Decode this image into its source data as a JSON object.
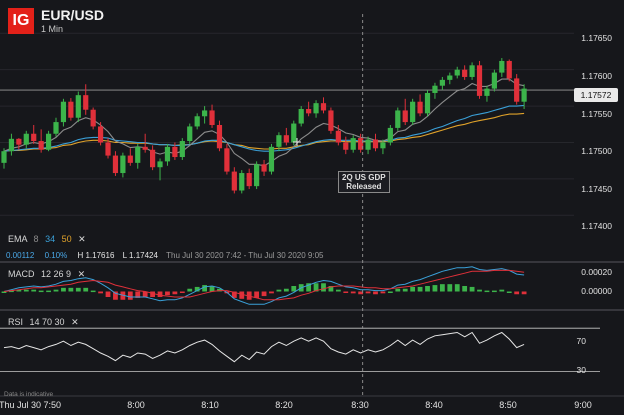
{
  "header": {
    "logo": "IG",
    "symbol": "EUR/USD",
    "timeframe": "1 Min"
  },
  "ema": {
    "label": "EMA",
    "p1": "8",
    "p2": "34",
    "p3": "50",
    "close": "✕",
    "colors": {
      "p1": "#8c8c8c",
      "p2": "#3aa0d8",
      "p3": "#e0a22a"
    }
  },
  "info": {
    "change": "0.00112",
    "change_pct": "0.10%",
    "high": "H 1.17616",
    "low": "L 1.17424",
    "range": "Thu Jul 30 2020 7:42 - Thu Jul 30 2020 9:05"
  },
  "macd": {
    "label": "MACD",
    "params": "12 26 9",
    "close": "✕",
    "ticks": [
      "0.00020",
      "0.00000"
    ]
  },
  "rsi": {
    "label": "RSI",
    "params": "14 70 30",
    "close": "✕",
    "ticks": [
      "70",
      "30"
    ]
  },
  "annotation": {
    "line1": "2Q US GDP",
    "line2": "Released"
  },
  "current_price": "1.17572",
  "disclaimer": "Data is indicative",
  "colors": {
    "up": "#3cb44b",
    "down": "#e0303a",
    "bg": "#16171b"
  },
  "chart_data": {
    "type": "candlestick",
    "title": "EUR/USD",
    "interval": "1 Min",
    "y_ticks": [
      "1.17650",
      "1.17600",
      "1.17550",
      "1.17500",
      "1.17450",
      "1.17400"
    ],
    "ylim": [
      1.17377,
      1.17682
    ],
    "x_ticks": [
      "Thu Jul 30  7:50",
      "8:00",
      "8:10",
      "8:20",
      "8:30",
      "8:40",
      "8:50",
      "9:00"
    ],
    "start": "07:42",
    "marker_time": "08:30",
    "current": 1.17572,
    "candles": [
      [
        1.17472,
        1.17492,
        1.17464,
        1.17488
      ],
      [
        1.17488,
        1.17512,
        1.17482,
        1.17505
      ],
      [
        1.17505,
        1.17506,
        1.1749,
        1.17497
      ],
      [
        1.17497,
        1.17516,
        1.17492,
        1.17512
      ],
      [
        1.17512,
        1.17524,
        1.17498,
        1.17502
      ],
      [
        1.17502,
        1.17518,
        1.17486,
        1.1749
      ],
      [
        1.1749,
        1.17516,
        1.17488,
        1.17512
      ],
      [
        1.17512,
        1.17534,
        1.17508,
        1.17528
      ],
      [
        1.17528,
        1.1756,
        1.17522,
        1.17556
      ],
      [
        1.17556,
        1.17561,
        1.1753,
        1.17534
      ],
      [
        1.17534,
        1.1757,
        1.17528,
        1.17565
      ],
      [
        1.17565,
        1.1758,
        1.17538,
        1.17545
      ],
      [
        1.17545,
        1.17548,
        1.17518,
        1.17522
      ],
      [
        1.17522,
        1.17528,
        1.17496,
        1.175
      ],
      [
        1.175,
        1.17506,
        1.17478,
        1.17482
      ],
      [
        1.17482,
        1.17488,
        1.17454,
        1.17458
      ],
      [
        1.17458,
        1.17486,
        1.17452,
        1.17482
      ],
      [
        1.17482,
        1.17492,
        1.17468,
        1.17472
      ],
      [
        1.17472,
        1.17498,
        1.17464,
        1.17494
      ],
      [
        1.17494,
        1.17512,
        1.17486,
        1.1749
      ],
      [
        1.1749,
        1.17496,
        1.17462,
        1.17466
      ],
      [
        1.17466,
        1.17478,
        1.17448,
        1.17474
      ],
      [
        1.17474,
        1.17498,
        1.17468,
        1.17494
      ],
      [
        1.17494,
        1.175,
        1.17476,
        1.1748
      ],
      [
        1.1748,
        1.17506,
        1.17476,
        1.17502
      ],
      [
        1.17502,
        1.17526,
        1.17498,
        1.17522
      ],
      [
        1.17522,
        1.1754,
        1.17518,
        1.17536
      ],
      [
        1.17536,
        1.1755,
        1.17526,
        1.17544
      ],
      [
        1.17544,
        1.17552,
        1.1752,
        1.17524
      ],
      [
        1.17524,
        1.1753,
        1.17488,
        1.17492
      ],
      [
        1.17492,
        1.17498,
        1.17456,
        1.1746
      ],
      [
        1.1746,
        1.17466,
        1.1743,
        1.17434
      ],
      [
        1.17434,
        1.17462,
        1.1743,
        1.17458
      ],
      [
        1.17458,
        1.17464,
        1.17436,
        1.1744
      ],
      [
        1.1744,
        1.17474,
        1.17436,
        1.1747
      ],
      [
        1.1747,
        1.17476,
        1.17454,
        1.1746
      ],
      [
        1.1746,
        1.17498,
        1.17456,
        1.17494
      ],
      [
        1.17494,
        1.17514,
        1.17488,
        1.1751
      ],
      [
        1.1751,
        1.1752,
        1.17496,
        1.175
      ],
      [
        1.175,
        1.1753,
        1.17496,
        1.17526
      ],
      [
        1.17526,
        1.1755,
        1.17522,
        1.17546
      ],
      [
        1.17546,
        1.17556,
        1.17536,
        1.1754
      ],
      [
        1.1754,
        1.17558,
        1.17534,
        1.17554
      ],
      [
        1.17554,
        1.17562,
        1.1754,
        1.17544
      ],
      [
        1.17544,
        1.17548,
        1.17512,
        1.17516
      ],
      [
        1.17516,
        1.17524,
        1.17496,
        1.175
      ],
      [
        1.175,
        1.17508,
        1.17484,
        1.1749
      ],
      [
        1.1749,
        1.1751,
        1.17486,
        1.17506
      ],
      [
        1.17506,
        1.17512,
        1.17486,
        1.1749
      ],
      [
        1.1749,
        1.17508,
        1.17484,
        1.17504
      ],
      [
        1.17504,
        1.17512,
        1.17488,
        1.17492
      ],
      [
        1.17492,
        1.17504,
        1.17484,
        1.175
      ],
      [
        1.175,
        1.17524,
        1.17496,
        1.1752
      ],
      [
        1.1752,
        1.17548,
        1.17516,
        1.17544
      ],
      [
        1.17544,
        1.1756,
        1.17524,
        1.17528
      ],
      [
        1.17528,
        1.1756,
        1.17524,
        1.17556
      ],
      [
        1.17556,
        1.17566,
        1.17536,
        1.1754
      ],
      [
        1.1754,
        1.17572,
        1.17536,
        1.17568
      ],
      [
        1.17568,
        1.17582,
        1.1756,
        1.17578
      ],
      [
        1.17578,
        1.1759,
        1.17572,
        1.17586
      ],
      [
        1.17586,
        1.17596,
        1.1758,
        1.17592
      ],
      [
        1.17592,
        1.17604,
        1.17588,
        1.176
      ],
      [
        1.176,
        1.17606,
        1.17586,
        1.1759
      ],
      [
        1.1759,
        1.1761,
        1.17586,
        1.17606
      ],
      [
        1.17606,
        1.17612,
        1.1756,
        1.17564
      ],
      [
        1.17564,
        1.17578,
        1.17556,
        1.17574
      ],
      [
        1.17574,
        1.176,
        1.1757,
        1.17596
      ],
      [
        1.17596,
        1.17616,
        1.1759,
        1.17612
      ],
      [
        1.17612,
        1.17614,
        1.17584,
        1.17588
      ],
      [
        1.17588,
        1.17594,
        1.17552,
        1.17556
      ],
      [
        1.17556,
        1.1758,
        1.17546,
        1.17574
      ]
    ],
    "ema8": [
      1.17488,
      1.17492,
      1.17494,
      1.17498,
      1.175,
      1.17498,
      1.17501,
      1.17507,
      1.17517,
      1.17521,
      1.1753,
      1.17534,
      1.17531,
      1.17524,
      1.17515,
      1.17502,
      1.17498,
      1.17493,
      1.17494,
      1.17493,
      1.17487,
      1.17484,
      1.17487,
      1.17485,
      1.17488,
      1.17496,
      1.17505,
      1.17514,
      1.17516,
      1.17511,
      1.175,
      1.17485,
      1.17478,
      1.1747,
      1.1747,
      1.17468,
      1.17474,
      1.17481,
      1.17485,
      1.17494,
      1.17505,
      1.17512,
      1.17521,
      1.17526,
      1.17524,
      1.17519,
      1.17513,
      1.17511,
      1.17507,
      1.17506,
      1.17503,
      1.17502,
      1.17506,
      1.17515,
      1.17517,
      1.17525,
      1.17528,
      1.17536,
      1.17546,
      1.17555,
      1.17563,
      1.17571,
      1.17574,
      1.17581,
      1.17577,
      1.17577,
      1.17581,
      1.17587,
      1.17587,
      1.1758,
      1.17578
    ],
    "ema34": [
      1.17488,
      1.17489,
      1.1749,
      1.17491,
      1.17492,
      1.17492,
      1.17493,
      1.17495,
      1.17498,
      1.175,
      1.17504,
      1.17506,
      1.17507,
      1.17507,
      1.17506,
      1.17503,
      1.17502,
      1.17501,
      1.175,
      1.175,
      1.17498,
      1.17497,
      1.17497,
      1.17496,
      1.17496,
      1.17497,
      1.17499,
      1.17502,
      1.17503,
      1.17503,
      1.175,
      1.17497,
      1.17494,
      1.17491,
      1.17489,
      1.17488,
      1.17488,
      1.17489,
      1.1749,
      1.17492,
      1.17495,
      1.17498,
      1.17501,
      1.17503,
      1.17504,
      1.17503,
      1.17503,
      1.17503,
      1.17502,
      1.17502,
      1.17502,
      1.17502,
      1.17503,
      1.17506,
      1.17507,
      1.1751,
      1.17512,
      1.17515,
      1.17519,
      1.17522,
      1.17526,
      1.1753,
      1.17533,
      1.17537,
      1.17539,
      1.17541,
      1.17544,
      1.17547,
      1.1755,
      1.1755,
      1.17551
    ],
    "ema50": [
      1.17488,
      1.17489,
      1.17489,
      1.1749,
      1.17491,
      1.17491,
      1.17492,
      1.17493,
      1.17496,
      1.17497,
      1.175,
      1.17502,
      1.17503,
      1.17503,
      1.17502,
      1.175,
      1.175,
      1.17499,
      1.17499,
      1.17499,
      1.17498,
      1.17497,
      1.17497,
      1.17496,
      1.17497,
      1.17497,
      1.17499,
      1.17501,
      1.17502,
      1.17501,
      1.175,
      1.17497,
      1.17496,
      1.17493,
      1.17492,
      1.17491,
      1.17491,
      1.17492,
      1.17492,
      1.17494,
      1.17496,
      1.17497,
      1.175,
      1.17501,
      1.17502,
      1.17502,
      1.17501,
      1.17501,
      1.17501,
      1.17501,
      1.17501,
      1.17501,
      1.17502,
      1.17504,
      1.17505,
      1.17507,
      1.17508,
      1.17511,
      1.17514,
      1.17517,
      1.1752,
      1.17523,
      1.17525,
      1.17528,
      1.1753,
      1.17532,
      1.17534,
      1.17537,
      1.17539,
      1.17539,
      1.1754
    ],
    "macd": {
      "ylim": [
        -0.00018,
        0.0003
      ],
      "macd": [
        0.0,
        2e-05,
        4e-05,
        5e-05,
        6e-05,
        5e-05,
        6e-05,
        8e-05,
        0.00011,
        0.00012,
        0.00014,
        0.00015,
        0.00013,
        9e-05,
        4e-05,
        -2e-05,
        -4e-05,
        -6e-05,
        -6e-05,
        -6e-05,
        -8e-05,
        -0.0001,
        -9e-05,
        -9e-05,
        -7e-05,
        -3e-05,
        1e-05,
        5e-05,
        6e-05,
        4e-05,
        -1e-05,
        -8e-05,
        -0.00011,
        -0.00014,
        -0.00014,
        -0.00014,
        -0.00011,
        -7e-05,
        -5e-05,
        -1e-05,
        4e-05,
        7e-05,
        0.0001,
        0.00012,
        0.00011,
        8e-05,
        5e-05,
        4e-05,
        2e-05,
        2e-05,
        1e-05,
        1e-05,
        3e-05,
        7e-05,
        8e-05,
        0.00011,
        0.00013,
        0.00016,
        0.00019,
        0.00022,
        0.00024,
        0.00026,
        0.00026,
        0.00027,
        0.00024,
        0.00023,
        0.00024,
        0.00025,
        0.00023,
        0.00019,
        0.00018
      ],
      "signal": [
        0.0,
        1e-05,
        2e-05,
        3e-05,
        4e-05,
        4e-05,
        5e-05,
        6e-05,
        7e-05,
        8e-05,
        0.0001,
        0.00011,
        0.00012,
        0.00011,
        0.0001,
        7e-05,
        5e-05,
        3e-05,
        1e-05,
        0.0,
        -2e-05,
        -4e-05,
        -5e-05,
        -6e-05,
        -6e-05,
        -6e-05,
        -4e-05,
        -2e-05,
        0.0,
        1e-05,
        1e-05,
        -1e-05,
        -3e-05,
        -5e-05,
        -7e-05,
        -9e-05,
        -9e-05,
        -9e-05,
        -8e-05,
        -7e-05,
        -4e-05,
        -2e-05,
        1e-05,
        3e-05,
        5e-05,
        6e-05,
        6e-05,
        6e-05,
        5e-05,
        4e-05,
        4e-05,
        3e-05,
        3e-05,
        4e-05,
        5e-05,
        6e-05,
        8e-05,
        0.0001,
        0.00012,
        0.00014,
        0.00016,
        0.00018,
        0.0002,
        0.00022,
        0.00022,
        0.00022,
        0.00023,
        0.00023,
        0.00023,
        0.00022,
        0.00021
      ]
    },
    "rsi": {
      "ylim": [
        10,
        85
      ],
      "levels": [
        70,
        30
      ],
      "values": [
        52,
        53,
        51,
        54,
        52,
        50,
        53,
        55,
        58,
        54,
        57,
        55,
        51,
        47,
        44,
        40,
        45,
        43,
        47,
        46,
        42,
        45,
        49,
        47,
        50,
        54,
        57,
        59,
        55,
        49,
        44,
        39,
        45,
        41,
        48,
        46,
        53,
        57,
        54,
        58,
        61,
        58,
        61,
        58,
        51,
        48,
        46,
        50,
        47,
        50,
        48,
        50,
        54,
        59,
        54,
        59,
        55,
        60,
        63,
        64,
        65,
        66,
        62,
        66,
        56,
        59,
        63,
        66,
        60,
        52,
        55
      ]
    }
  }
}
